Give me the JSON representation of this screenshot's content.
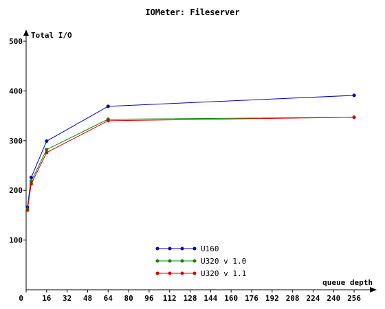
{
  "chart_data": {
    "type": "line",
    "title": "IOMeter: Fileserver",
    "xlabel": "queue depth",
    "ylabel": "Total I/O",
    "xlim": [
      0,
      264
    ],
    "ylim": [
      0,
      500
    ],
    "x_ticks": [
      0,
      16,
      32,
      48,
      64,
      80,
      96,
      112,
      128,
      144,
      160,
      176,
      192,
      208,
      224,
      240,
      256
    ],
    "y_ticks": [
      100,
      200,
      300,
      400,
      500
    ],
    "x_tick_labels": [
      "0",
      "16",
      "32",
      "48",
      "64",
      "80",
      "96",
      "112",
      "128",
      "144",
      "160",
      "176",
      "192",
      "208",
      "224",
      "240",
      "256"
    ],
    "y_tick_labels": [
      "100",
      "200",
      "300",
      "400",
      "500"
    ],
    "legend_position": "bottom-center",
    "grid": false,
    "series": [
      {
        "name": "U160",
        "color": "#0000cc",
        "x": [
          1,
          4,
          16,
          64,
          256
        ],
        "y": [
          166,
          226,
          299,
          369,
          391
        ]
      },
      {
        "name": "U320 v 1.0",
        "color": "#008800",
        "x": [
          1,
          4,
          16,
          64,
          256
        ],
        "y": [
          162,
          218,
          282,
          343,
          347
        ]
      },
      {
        "name": "U320 v 1.1",
        "color": "#dd0000",
        "x": [
          1,
          4,
          16,
          64,
          256
        ],
        "y": [
          160,
          213,
          276,
          340,
          347
        ]
      }
    ]
  }
}
